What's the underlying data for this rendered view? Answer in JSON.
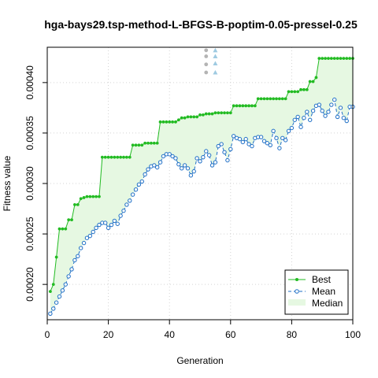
{
  "chart_data": {
    "type": "line",
    "title": "hga-bays29.tsp-method-L-BFGS-B-poptim-0.05-pressel-0.25",
    "xlabel": "Generation",
    "ylabel": "Fitness value",
    "xlim": [
      0,
      100
    ],
    "ylim": [
      0.000165,
      0.000435
    ],
    "x_ticks": [
      0,
      20,
      40,
      60,
      80,
      100
    ],
    "y_ticks": [
      0.0002,
      0.00025,
      0.0003,
      0.00035,
      0.0004
    ],
    "y_tick_labels": [
      "0.00020",
      "0.00025",
      "0.00030",
      "0.00035",
      "0.00040"
    ],
    "grid": true,
    "legend_position": "bottom-right",
    "colors": {
      "best": "#22bb22",
      "mean": "#1f6fc6",
      "median_fill": "#e6f8e2",
      "outlier": "#b4b4b4",
      "outlier_mean": "#9ecae1"
    },
    "x": [
      1,
      2,
      3,
      4,
      5,
      6,
      7,
      8,
      9,
      10,
      11,
      12,
      13,
      14,
      15,
      16,
      17,
      18,
      19,
      20,
      21,
      22,
      23,
      24,
      25,
      26,
      27,
      28,
      29,
      30,
      31,
      32,
      33,
      34,
      35,
      36,
      37,
      38,
      39,
      40,
      41,
      42,
      43,
      44,
      45,
      46,
      47,
      48,
      49,
      50,
      51,
      52,
      53,
      54,
      55,
      56,
      57,
      58,
      59,
      60,
      61,
      62,
      63,
      64,
      65,
      66,
      67,
      68,
      69,
      70,
      71,
      72,
      73,
      74,
      75,
      76,
      77,
      78,
      79,
      80,
      81,
      82,
      83,
      84,
      85,
      86,
      87,
      88,
      89,
      90,
      91,
      92,
      93,
      94,
      95,
      96,
      97,
      98,
      99,
      100
    ],
    "series": [
      {
        "name": "Best",
        "values": [
          0.000193,
          0.0002,
          0.000227,
          0.000255,
          0.000255,
          0.000255,
          0.000264,
          0.000264,
          0.000279,
          0.000279,
          0.000285,
          0.000286,
          0.000287,
          0.000287,
          0.000287,
          0.000287,
          0.000287,
          0.000326,
          0.000326,
          0.000326,
          0.000326,
          0.000326,
          0.000326,
          0.000326,
          0.000326,
          0.000326,
          0.000326,
          0.000338,
          0.000338,
          0.000338,
          0.000338,
          0.00034,
          0.00034,
          0.00034,
          0.00034,
          0.00034,
          0.000361,
          0.000361,
          0.000361,
          0.000361,
          0.000361,
          0.000361,
          0.000363,
          0.000365,
          0.000365,
          0.000366,
          0.000366,
          0.000366,
          0.000366,
          0.000368,
          0.000368,
          0.000369,
          0.000369,
          0.000369,
          0.00037,
          0.00037,
          0.00037,
          0.00037,
          0.00037,
          0.00037,
          0.000377,
          0.000377,
          0.000377,
          0.000377,
          0.000377,
          0.000377,
          0.000377,
          0.000377,
          0.000384,
          0.000384,
          0.000384,
          0.000384,
          0.000384,
          0.000384,
          0.000384,
          0.000384,
          0.000384,
          0.000384,
          0.000391,
          0.000391,
          0.000391,
          0.000391,
          0.000393,
          0.000393,
          0.000393,
          0.000401,
          0.000401,
          0.000405,
          0.000424,
          0.000424,
          0.000424,
          0.000424,
          0.000424,
          0.000424,
          0.000424,
          0.000424,
          0.000424,
          0.000424,
          0.000424,
          0.000424
        ]
      },
      {
        "name": "Mean",
        "values": [
          0.000171,
          0.000176,
          0.000182,
          0.000188,
          0.000194,
          0.0002,
          0.000208,
          0.000215,
          0.000224,
          0.000228,
          0.000236,
          0.000241,
          0.000246,
          0.000248,
          0.000252,
          0.000256,
          0.000259,
          0.000261,
          0.000261,
          0.000256,
          0.000259,
          0.000263,
          0.00026,
          0.000268,
          0.000273,
          0.000279,
          0.000283,
          0.000289,
          0.000294,
          0.000299,
          0.000302,
          0.000309,
          0.000314,
          0.000317,
          0.000318,
          0.000316,
          0.000321,
          0.000327,
          0.000329,
          0.000329,
          0.000327,
          0.000325,
          0.000319,
          0.000315,
          0.000318,
          0.000315,
          0.000308,
          0.000312,
          0.000325,
          0.000322,
          0.000326,
          0.000332,
          0.000328,
          0.000318,
          0.000321,
          0.000337,
          0.000339,
          0.000331,
          0.000323,
          0.000334,
          0.000347,
          0.000345,
          0.000344,
          0.000341,
          0.000344,
          0.000339,
          0.000337,
          0.000345,
          0.000346,
          0.000346,
          0.000342,
          0.00034,
          0.000338,
          0.000352,
          0.000345,
          0.000335,
          0.000345,
          0.000343,
          0.000352,
          0.000355,
          0.000363,
          0.000366,
          0.000356,
          0.000365,
          0.000371,
          0.000363,
          0.000372,
          0.000377,
          0.000378,
          0.000372,
          0.000367,
          0.000371,
          0.000378,
          0.000383,
          0.000366,
          0.000375,
          0.000365,
          0.000362,
          0.000376,
          0.000376
        ]
      },
      {
        "name": "Median",
        "values": [
          0.000193,
          0.0002,
          0.000227,
          0.000255,
          0.000255,
          0.000255,
          0.000264,
          0.000264,
          0.000279,
          0.000279,
          0.000285,
          0.000286,
          0.000287,
          0.000287,
          0.000287,
          0.000287,
          0.000287,
          0.000326,
          0.000326,
          0.000326,
          0.000326,
          0.000326,
          0.000326,
          0.000326,
          0.000326,
          0.000326,
          0.000326,
          0.000338,
          0.000338,
          0.000338,
          0.000338,
          0.00034,
          0.00034,
          0.00034,
          0.00034,
          0.00034,
          0.000361,
          0.000361,
          0.000361,
          0.000361,
          0.000361,
          0.000361,
          0.000363,
          0.000365,
          0.000365,
          0.000366,
          0.000366,
          0.000366,
          0.000366,
          0.000368,
          0.000368,
          0.000369,
          0.000369,
          0.000369,
          0.00037,
          0.00037,
          0.00037,
          0.00037,
          0.00037,
          0.00037,
          0.000377,
          0.000377,
          0.000377,
          0.000377,
          0.000377,
          0.000377,
          0.000377,
          0.000377,
          0.000384,
          0.000384,
          0.000384,
          0.000384,
          0.000384,
          0.000384,
          0.000384,
          0.000384,
          0.000384,
          0.000384,
          0.000391,
          0.000391,
          0.000391,
          0.000391,
          0.000393,
          0.000393,
          0.000393,
          0.000401,
          0.000401,
          0.000405,
          0.000424,
          0.000424,
          0.000424,
          0.000424,
          0.000424,
          0.000424,
          0.000424,
          0.000424,
          0.000424,
          0.000424,
          0.000424,
          0.000424
        ]
      }
    ],
    "median_band_lower": [
      0.000171,
      0.000176,
      0.000182,
      0.000188,
      0.000194,
      0.0002,
      0.000208,
      0.000215,
      0.000224,
      0.000228,
      0.000236,
      0.000241,
      0.000246,
      0.000248,
      0.000252,
      0.000256,
      0.000259,
      0.000261,
      0.000261,
      0.000256,
      0.000259,
      0.000263,
      0.00026,
      0.000268,
      0.000273,
      0.000279,
      0.000283,
      0.000289,
      0.000294,
      0.000299,
      0.000302,
      0.000309,
      0.000314,
      0.000317,
      0.000318,
      0.000316,
      0.000321,
      0.000327,
      0.000329,
      0.000329,
      0.000327,
      0.000325,
      0.000319,
      0.000315,
      0.000318,
      0.000315,
      0.000308,
      0.000312,
      0.000325,
      0.000322,
      0.000326,
      0.000332,
      0.000328,
      0.000318,
      0.000321,
      0.000337,
      0.000339,
      0.000331,
      0.000323,
      0.000334,
      0.000347,
      0.000345,
      0.000344,
      0.000341,
      0.000344,
      0.000339,
      0.000337,
      0.000345,
      0.000346,
      0.000346,
      0.000342,
      0.00034,
      0.000338,
      0.000352,
      0.000345,
      0.000335,
      0.000345,
      0.000343,
      0.000352,
      0.000355,
      0.000363,
      0.000366,
      0.000356,
      0.000365,
      0.000371,
      0.000363,
      0.000372,
      0.000377,
      0.000378,
      0.000372,
      0.000367,
      0.000371,
      0.000378,
      0.000383,
      0.000366,
      0.000375,
      0.000365,
      0.000362,
      0.000376,
      0.000376
    ],
    "outliers": [
      {
        "name": "best-outliers",
        "x": 52,
        "values": [
          0.00041,
          0.000418,
          0.000426,
          0.000432
        ]
      },
      {
        "name": "mean-outliers",
        "x": 55,
        "values": [
          0.00041,
          0.000419,
          0.000426,
          0.000432
        ]
      }
    ],
    "legend": [
      "Best",
      "Mean",
      "Median"
    ]
  }
}
